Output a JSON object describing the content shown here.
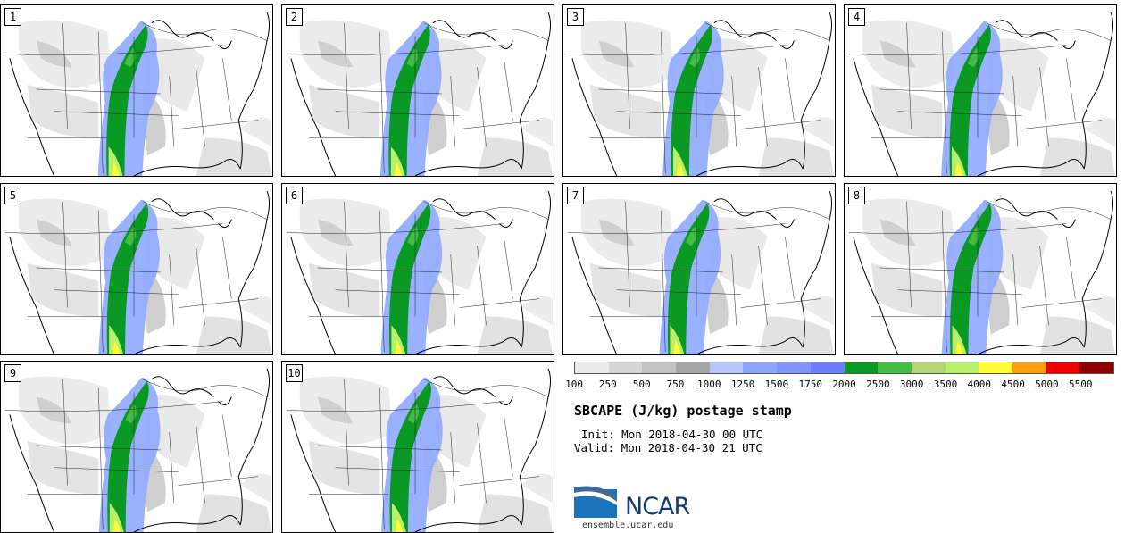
{
  "panels": [
    {
      "label": "1"
    },
    {
      "label": "2"
    },
    {
      "label": "3"
    },
    {
      "label": "4"
    },
    {
      "label": "5"
    },
    {
      "label": "6"
    },
    {
      "label": "7"
    },
    {
      "label": "8"
    },
    {
      "label": "9"
    },
    {
      "label": "10"
    }
  ],
  "colorbar": {
    "colors": [
      "#ececec",
      "#d6d6d6",
      "#c3c3c3",
      "#a6a6a6",
      "#b3c6ff",
      "#8fa8ff",
      "#7f96ff",
      "#6c7fff",
      "#0a9a24",
      "#44bb44",
      "#b4d47a",
      "#b9f06a",
      "#ffff33",
      "#ff9f10",
      "#ee0000",
      "#8b0000"
    ],
    "labels": [
      "100",
      "250",
      "500",
      "750",
      "1000",
      "1250",
      "1500",
      "1750",
      "2000",
      "2500",
      "3000",
      "3500",
      "4000",
      "4500",
      "5000",
      "5500"
    ]
  },
  "title": "SBCAPE (J/kg) postage stamp",
  "init_text": "Init: Mon 2018-04-30 00 UTC",
  "valid_text": "Valid: Mon 2018-04-30 21 UTC",
  "logo_text": "NCAR",
  "site_text": "ensemble.ucar.edu",
  "colors": {
    "logo_blue": "#123d6e",
    "logo_swoosh": "#1c75bc"
  }
}
